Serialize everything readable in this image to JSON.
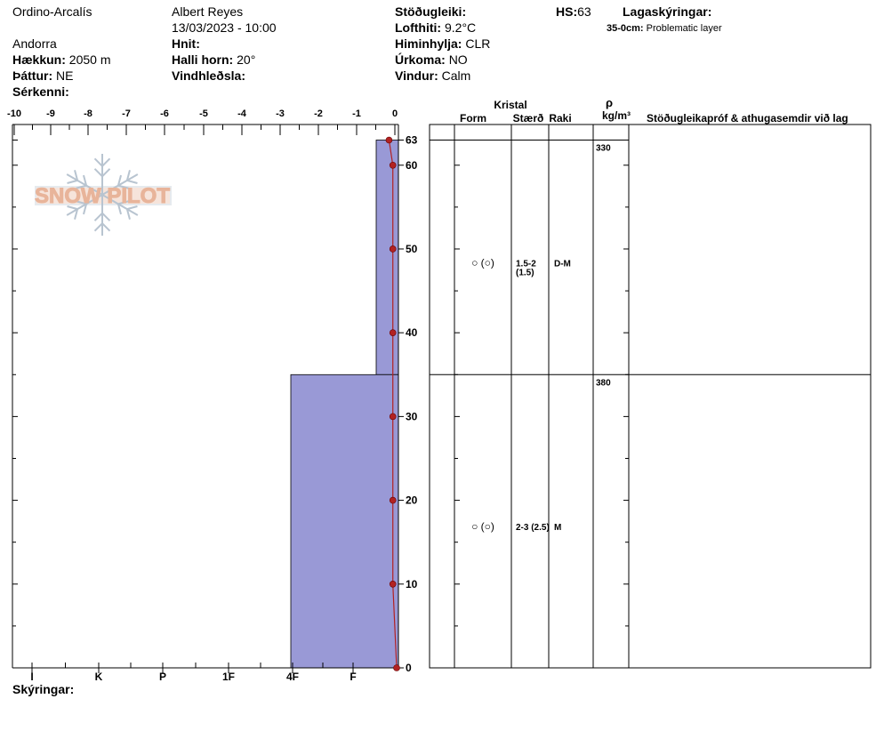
{
  "header": {
    "location": "Ordino-Arcalís",
    "region": "Andorra",
    "observer": "Albert Reyes",
    "datetime": "13/03/2023 - 10:00",
    "elevation_label": "Hækkun:",
    "elevation_value": "2050 m",
    "aspect_label": "Þáttur:",
    "aspect_value": "NE",
    "features_label": "Sérkenni:",
    "coords_label": "Hnit:",
    "slope_label": "Halli horn:",
    "slope_value": "20°",
    "wind_loading_label": "Vindhleðsla:",
    "stability_label": "Stöðugleiki:",
    "air_temp_label": "Lofthiti:",
    "air_temp_value": "9.2°C",
    "sky_label": "Himinhylja:",
    "sky_value": "CLR",
    "precip_label": "Úrkoma:",
    "precip_value": "NO",
    "wind_label": "Vindur:",
    "wind_value": "Calm",
    "hs_label": "HS:",
    "hs_value": "63",
    "legend_label": "Lagaskýringar:",
    "legend_layer_depth": "35-0cm:",
    "legend_layer_text": "Problematic layer"
  },
  "table": {
    "crystal_header": "Kristal",
    "form_header": "Form",
    "size_header": "Stærð",
    "moisture_header": "Raki",
    "density_symbol": "ρ",
    "density_unit": "kg/m³",
    "tests_header": "Stöðugleikapróf & athugasemdir við lag"
  },
  "footer": {
    "notes_label": "Skýringar:"
  },
  "logo": {
    "text": "SNOW PILOT"
  },
  "colors": {
    "hardness_fill": "#9999d6",
    "temp_line": "#b22222",
    "logo": "#e8b49a",
    "snowflake": "#b8c4d0"
  },
  "chart_data": {
    "type": "snow-profile",
    "temperature_axis": {
      "ticks": [
        "-10",
        "-9",
        "-8",
        "-7",
        "-6",
        "-5",
        "-4",
        "-3",
        "-2",
        "-1",
        "0"
      ],
      "range": [
        -10,
        0
      ]
    },
    "hardness_axis": {
      "ticks": [
        "I",
        "K",
        "P",
        "1F",
        "4F",
        "F"
      ]
    },
    "height_axis": {
      "ticks": [
        "0",
        "10",
        "20",
        "30",
        "40",
        "50",
        "60",
        "63"
      ],
      "range": [
        0,
        63
      ]
    },
    "layers": [
      {
        "top": 63,
        "bottom": 35,
        "hardness": "F+",
        "form": "○ (○)",
        "size": "1.5-2",
        "size_avg": "(1.5)",
        "moisture": "D-M",
        "density": "330"
      },
      {
        "top": 35,
        "bottom": 0,
        "hardness": "4F",
        "form": "○ (○)",
        "size": "2-3 (2.5)",
        "size_avg": "",
        "moisture": "M",
        "density": "380"
      }
    ],
    "temperature_profile": [
      {
        "height": 63,
        "temp": -0.2
      },
      {
        "height": 60,
        "temp": -0.1
      },
      {
        "height": 50,
        "temp": -0.1
      },
      {
        "height": 40,
        "temp": -0.1
      },
      {
        "height": 30,
        "temp": -0.1
      },
      {
        "height": 20,
        "temp": -0.1
      },
      {
        "height": 10,
        "temp": -0.1
      },
      {
        "height": 0,
        "temp": 0
      }
    ]
  }
}
